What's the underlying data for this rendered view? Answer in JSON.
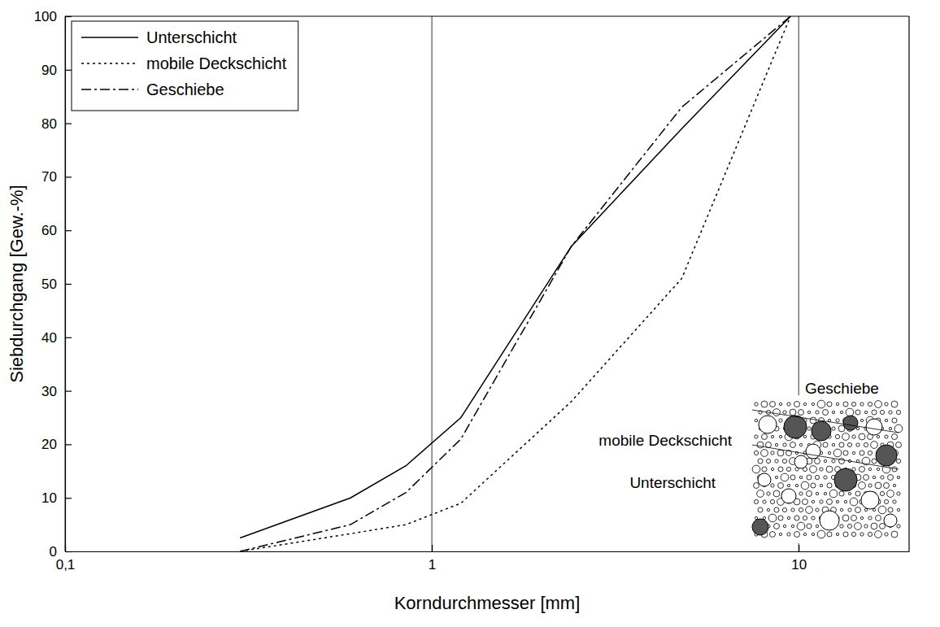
{
  "chart_data": {
    "type": "line",
    "x_label": "Korndurchmesser [mm]",
    "y_label": "Siebdurchgang [Gew.-%]",
    "x": [
      0.3,
      0.6,
      0.85,
      1.2,
      2.4,
      4.8,
      9.5
    ],
    "series": [
      {
        "name": "Unterschicht",
        "color": "#000000",
        "line_style": "solid",
        "values": [
          2.5,
          10,
          16,
          25,
          57,
          79,
          100
        ]
      },
      {
        "name": "mobile Deckschicht",
        "color": "#000000",
        "line_style": "dotted",
        "values": [
          0,
          3.3,
          5,
          9,
          28,
          51,
          100
        ]
      },
      {
        "name": "Geschiebe",
        "color": "#000000",
        "line_style": "dashdot",
        "values": [
          0,
          5,
          11,
          21,
          57,
          83,
          100
        ]
      }
    ],
    "log": "x",
    "xlim": [
      0.1,
      20
    ],
    "xticks": [
      {
        "value": 0.1,
        "label": "0,1"
      },
      1,
      10
    ],
    "ylim": [
      0,
      100
    ],
    "yticks": [
      0,
      10,
      20,
      30,
      40,
      50,
      60,
      70,
      80,
      90,
      100
    ],
    "grid": "x",
    "legend": "top-left",
    "annotations": [
      "Geschiebe",
      "mobile Deckschicht",
      "Unterschicht"
    ]
  }
}
